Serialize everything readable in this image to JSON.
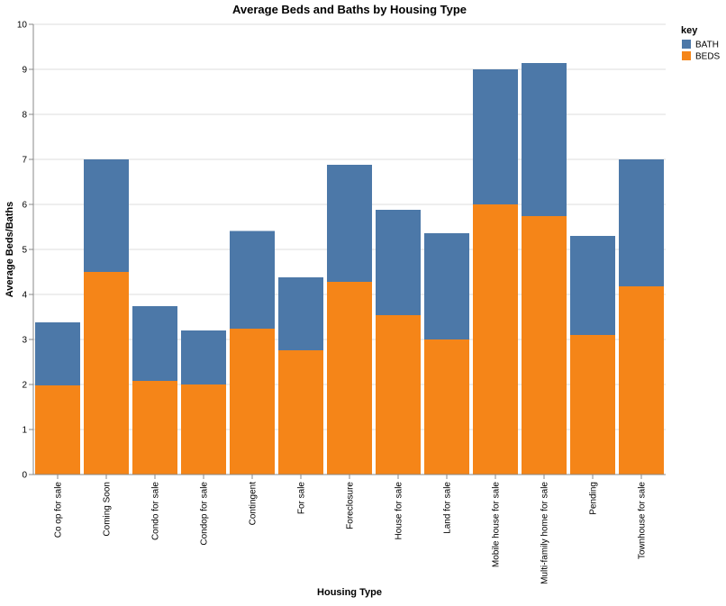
{
  "chart_data": {
    "type": "bar",
    "stacked": true,
    "title": "Average Beds and Baths by Housing Type",
    "xlabel": "Housing Type",
    "ylabel": "Average Beds/Baths",
    "ylim": [
      0,
      10
    ],
    "y_ticks": [
      "0",
      "1",
      "2",
      "3",
      "4",
      "5",
      "6",
      "7",
      "8",
      "9",
      "10"
    ],
    "grid": true,
    "legend": {
      "title": "key",
      "placement": "top-right",
      "entries": [
        {
          "label": "BATH",
          "color": "#4c78a8"
        },
        {
          "label": "BEDS",
          "color": "#f58518"
        }
      ]
    },
    "categories": [
      "Co op for sale",
      "Coming Soon",
      "Condo for sale",
      "Condop for sale",
      "Contingent",
      "For sale",
      "Foreclosure",
      "House for sale",
      "Land for sale",
      "Mobile house for sale",
      "Multi-family home for sale",
      "Pending",
      "Townhouse for sale"
    ],
    "series": [
      {
        "name": "BEDS",
        "color": "#f58518",
        "values": [
          1.98,
          4.5,
          2.08,
          2.0,
          3.24,
          2.76,
          4.28,
          3.54,
          3.0,
          6.0,
          5.74,
          3.1,
          4.18
        ]
      },
      {
        "name": "BATH",
        "color": "#4c78a8",
        "values": [
          1.4,
          2.5,
          1.66,
          1.2,
          2.17,
          1.62,
          2.6,
          2.34,
          2.36,
          3.0,
          3.4,
          2.2,
          2.82
        ]
      }
    ]
  }
}
